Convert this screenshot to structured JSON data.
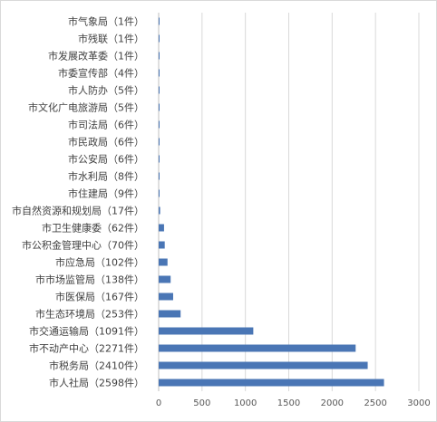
{
  "chart_data": {
    "type": "bar",
    "orientation": "horizontal",
    "title": "",
    "xlabel": "",
    "ylabel": "",
    "categories": [
      "市气象局（1件）",
      "市残联（1件）",
      "市发展改革委（1件）",
      "市委宣传部（4件）",
      "市人防办（5件）",
      "市文化广电旅游局（5件）",
      "市司法局（6件）",
      "市民政局（6件）",
      "市公安局（6件）",
      "市水利局（8件）",
      "市住建局（9件）",
      "市自然资源和规划局（17件）",
      "市卫生健康委（62件）",
      "市公积金管理中心（70件）",
      "市应急局（102件）",
      "市市场监管局（138件）",
      "市医保局（167件）",
      "市生态环境局（253件）",
      "市交通运输局（1091件）",
      "市不动产中心（2271件）",
      "市税务局（2410件）",
      "市人社局（2598件）"
    ],
    "values": [
      1,
      1,
      1,
      4,
      5,
      5,
      6,
      6,
      6,
      8,
      9,
      17,
      62,
      70,
      102,
      138,
      167,
      253,
      1091,
      2271,
      2410,
      2598
    ],
    "xlim": [
      0,
      3000
    ],
    "xticks": [
      "0",
      "500",
      "1000",
      "1500",
      "2000",
      "2500",
      "3000"
    ],
    "grid": true,
    "legend": "none",
    "bar_color": "#4a76b5"
  }
}
